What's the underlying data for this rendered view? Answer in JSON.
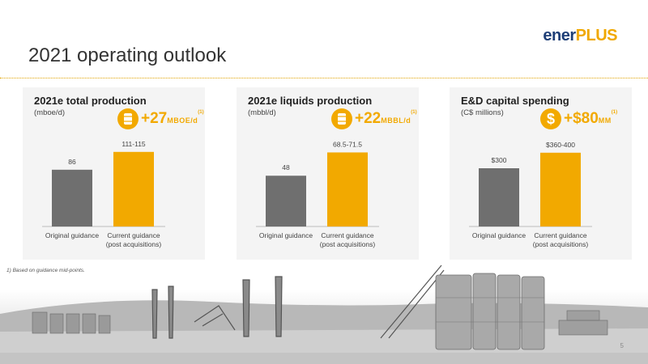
{
  "logo": {
    "part1": "ener",
    "part2": "PLUS"
  },
  "page_title": "2021 operating outlook",
  "footnote": "1) Based on guidance mid-points.",
  "page_number": "5",
  "colors": {
    "original": "#6f6f6f",
    "current": "#f2a900",
    "accent": "#f2a900",
    "panel_bg": "#f4f4f4"
  },
  "panels": [
    {
      "title": "2021e total production",
      "unit": "(mboe/d)",
      "icon": "oil-barrel-icon",
      "delta_value": "+27",
      "delta_unit": "MBOE/d",
      "delta_note": "(1)"
    },
    {
      "title": "2021e liquids production",
      "unit": "(mbbl/d)",
      "icon": "oil-barrel-icon",
      "delta_value": "+22",
      "delta_unit": "MBBL/d",
      "delta_note": "(1)"
    },
    {
      "title": "E&D capital spending",
      "unit": "(C$ millions)",
      "icon": "dollar-icon",
      "delta_value": "+$80",
      "delta_unit": "MM",
      "delta_note": "(1)"
    }
  ],
  "chart_data": [
    {
      "type": "bar",
      "title": "2021e total production",
      "ylabel": "(mboe/d)",
      "categories": [
        "Original guidance",
        "Current guidance\n(post acquisitions)"
      ],
      "values": [
        86,
        113
      ],
      "data_labels": [
        "86",
        "111-115"
      ],
      "ylim": [
        0,
        125
      ],
      "grid": false
    },
    {
      "type": "bar",
      "title": "2021e liquids production",
      "ylabel": "(mbbl/d)",
      "categories": [
        "Original guidance",
        "Current guidance\n(post acquisitions)"
      ],
      "values": [
        48,
        70
      ],
      "data_labels": [
        "48",
        "68.5-71.5"
      ],
      "ylim": [
        0,
        78
      ],
      "grid": false
    },
    {
      "type": "bar",
      "title": "E&D capital spending",
      "ylabel": "(C$ millions)",
      "categories": [
        "Original guidance",
        "Current guidance\n(post acquisitions)"
      ],
      "values": [
        300,
        380
      ],
      "data_labels": [
        "$300",
        "$360-400"
      ],
      "ylim": [
        0,
        425
      ],
      "grid": false
    }
  ]
}
